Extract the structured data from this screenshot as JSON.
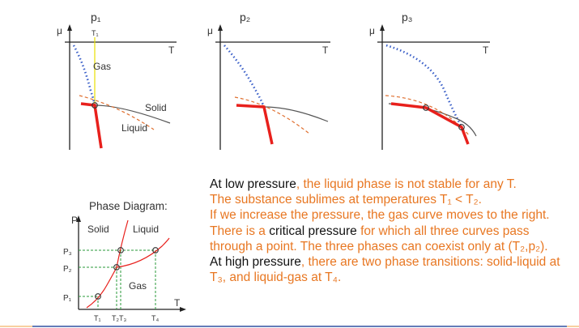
{
  "graphs": [
    {
      "p_label": "p₁",
      "mu": "μ",
      "T": "T",
      "t1": "T₁",
      "gas": "Gas",
      "solid": "Solid",
      "liquid": "Liquid"
    },
    {
      "p_label": "p₂",
      "mu": "μ",
      "T": "T"
    },
    {
      "p_label": "p₃",
      "mu": "μ",
      "T": "T"
    }
  ],
  "phase_diagram": {
    "title": "Phase Diagram:",
    "y_axis": "P",
    "x_axis": "T",
    "solid": "Solid",
    "liquid": "Liquid",
    "gas": "Gas",
    "p_ticks": [
      "P₃",
      "P₂",
      "P₁"
    ],
    "t_ticks": [
      "T₁",
      "T₂T₃",
      "T₄"
    ]
  },
  "text": {
    "l1a": "At low pressure",
    "l1b": ", the liquid phase is not stable for any T.",
    "l2": "The substance sublimes at temperatures T₁ < T₂.",
    "l3": "If we increase the pressure, the gas curve moves to the right.  There is a ",
    "l3b": "critical pressure",
    "l3c": " for which all three curves pass through a point.  The three phases can coexist only at (T₂,p₂).",
    "l4a": "At high pressure",
    "l4b": ", there are two phase transitions: solid-liquid at T₃, and liquid-gas at T₄."
  },
  "colors": {
    "gas": "#3a5fc8",
    "solid": "#555555",
    "liquid": "#e07030",
    "stable": "#e8201c",
    "text": "#e87722"
  }
}
